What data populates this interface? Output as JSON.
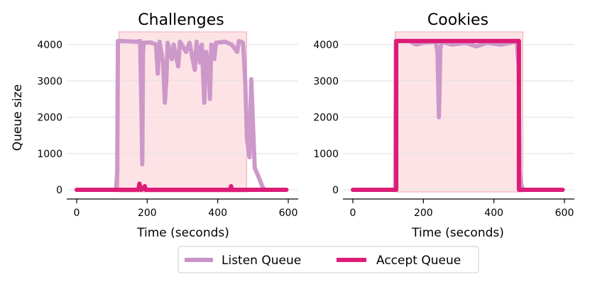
{
  "colors": {
    "listen": "#c994c7",
    "accept": "#dd1c77",
    "attack_shade": "#fdd0d6",
    "grid": "#e0e0e0"
  },
  "legend": {
    "placement": "bottom-center",
    "entries": [
      "Listen Queue",
      "Accept Queue"
    ]
  },
  "chart_data": [
    {
      "type": "line",
      "title": "Challenges",
      "xlabel": "Time (seconds)",
      "ylabel": "Queue size",
      "xlim": [
        -20,
        620
      ],
      "ylim": [
        -150,
        4400
      ],
      "xticks": [
        0,
        200,
        400,
        600
      ],
      "yticks": [
        0,
        1000,
        2000,
        3000,
        4000
      ],
      "grid": "horizontal",
      "attack_window": [
        120,
        482
      ],
      "series": [
        {
          "name": "Listen Queue",
          "points": [
            [
              0,
              0
            ],
            [
              112,
              0
            ],
            [
              115,
              500
            ],
            [
              117,
              4100
            ],
            [
              120,
              4100
            ],
            [
              170,
              4080
            ],
            [
              180,
              4100
            ],
            [
              184,
              2000
            ],
            [
              186,
              700
            ],
            [
              188,
              3800
            ],
            [
              190,
              4050
            ],
            [
              210,
              4060
            ],
            [
              225,
              4000
            ],
            [
              230,
              3200
            ],
            [
              235,
              4080
            ],
            [
              245,
              3500
            ],
            [
              250,
              2400
            ],
            [
              254,
              3000
            ],
            [
              258,
              4050
            ],
            [
              270,
              3600
            ],
            [
              275,
              4000
            ],
            [
              288,
              3400
            ],
            [
              293,
              4080
            ],
            [
              310,
              3800
            ],
            [
              320,
              4050
            ],
            [
              335,
              3300
            ],
            [
              340,
              4080
            ],
            [
              350,
              3500
            ],
            [
              355,
              4000
            ],
            [
              362,
              2400
            ],
            [
              367,
              3800
            ],
            [
              375,
              3400
            ],
            [
              378,
              2500
            ],
            [
              382,
              4000
            ],
            [
              390,
              3600
            ],
            [
              395,
              4050
            ],
            [
              420,
              4080
            ],
            [
              440,
              4000
            ],
            [
              455,
              3800
            ],
            [
              460,
              4100
            ],
            [
              472,
              4050
            ],
            [
              478,
              3000
            ],
            [
              483,
              1400
            ],
            [
              490,
              900
            ],
            [
              495,
              3050
            ],
            [
              500,
              1800
            ],
            [
              505,
              600
            ],
            [
              515,
              380
            ],
            [
              520,
              250
            ],
            [
              527,
              80
            ],
            [
              533,
              0
            ]
          ]
        },
        {
          "name": "Accept Queue",
          "points": [
            [
              0,
              0
            ],
            [
              175,
              0
            ],
            [
              178,
              170
            ],
            [
              183,
              0
            ],
            [
              190,
              30
            ],
            [
              193,
              100
            ],
            [
              196,
              0
            ],
            [
              435,
              0
            ],
            [
              438,
              100
            ],
            [
              441,
              0
            ],
            [
              595,
              0
            ]
          ]
        }
      ]
    },
    {
      "type": "line",
      "title": "Cookies",
      "xlabel": "Time (seconds)",
      "ylabel": "",
      "xlim": [
        -20,
        620
      ],
      "ylim": [
        -150,
        4400
      ],
      "xticks": [
        0,
        200,
        400,
        600
      ],
      "yticks": [
        0,
        1000,
        2000,
        3000,
        4000
      ],
      "grid": "horizontal",
      "attack_window": [
        120,
        482
      ],
      "series": [
        {
          "name": "Listen Queue",
          "points": [
            [
              0,
              0
            ],
            [
              120,
              0
            ],
            [
              122,
              4100
            ],
            [
              160,
              4100
            ],
            [
              180,
              4000
            ],
            [
              200,
              4050
            ],
            [
              235,
              4080
            ],
            [
              240,
              3800
            ],
            [
              244,
              2000
            ],
            [
              248,
              3900
            ],
            [
              252,
              4080
            ],
            [
              280,
              4000
            ],
            [
              320,
              4050
            ],
            [
              350,
              3950
            ],
            [
              380,
              4050
            ],
            [
              420,
              4000
            ],
            [
              460,
              4080
            ],
            [
              465,
              4100
            ],
            [
              470,
              3400
            ],
            [
              473,
              500
            ],
            [
              476,
              200
            ],
            [
              480,
              60
            ],
            [
              485,
              0
            ],
            [
              595,
              0
            ]
          ]
        },
        {
          "name": "Accept Queue",
          "points": [
            [
              0,
              0
            ],
            [
              123,
              0
            ],
            [
              123,
              4100
            ],
            [
              471,
              4100
            ],
            [
              471,
              0
            ],
            [
              595,
              0
            ]
          ]
        }
      ]
    }
  ]
}
